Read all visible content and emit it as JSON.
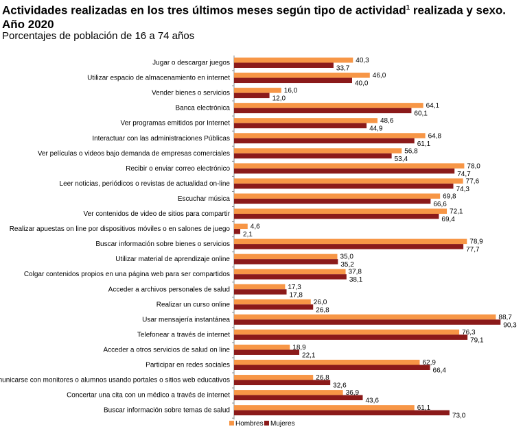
{
  "title": {
    "main": "Actividades realizadas en los tres últimos meses según tipo de actividad",
    "superscript": "1",
    "rest": " realizada y sexo. Año 2020"
  },
  "subtitle": "Porcentajes de población de 16 a 74 años",
  "colors": {
    "hombres": "#F79646",
    "mujeres": "#8B1A1A",
    "axis": "#888888"
  },
  "chart_data": {
    "type": "bar",
    "orientation": "horizontal",
    "title": "Actividades realizadas en los tres últimos meses según tipo de actividad realizada y sexo. Año 2020",
    "subtitle": "Porcentajes de población de 16 a 74 años",
    "xlim": [
      0,
      100
    ],
    "grid": false,
    "legend": "bottom-left",
    "categories": [
      "Jugar o descargar juegos",
      "Utilizar espacio de almacenamiento en internet",
      "Vender bienes o servicios",
      "Banca electrónica",
      "Ver programas emitidos por Internet",
      "Interactuar con las administraciones Públicas",
      "Ver películas o videos bajo demanda de empresas comerciales",
      "Recibir o enviar correo electrónico",
      "Leer noticias, periódicos o revistas de actualidad on-line",
      "Escuchar música",
      "Ver contenidos de video de sitios para compartir",
      "Realizar apuestas on line por dispositivos móviles o en salones de juego",
      "Buscar información sobre bienes o servicios",
      "Utilizar material de aprendizaje online",
      "Colgar contenidos propios en una página web para ser compartidos",
      "Acceder a archivos personales de salud",
      "Realizar un curso online",
      "Usar mensajería instantánea",
      "Telefonear a través de internet",
      "Acceder a otros servicios de salud on line",
      "Participar en redes sociales",
      "Comunicarse con monitores o alumnos usando portales o sitios web educativos",
      "Concertar una cita con un médico a través de internet",
      "Buscar información sobre temas de salud"
    ],
    "series": [
      {
        "name": "Hombres",
        "values": [
          40.3,
          46.0,
          16.0,
          64.1,
          48.6,
          64.8,
          56.8,
          78.0,
          77.6,
          69.8,
          72.1,
          4.6,
          78.9,
          35.0,
          37.8,
          17.3,
          26.0,
          88.7,
          76.3,
          18.9,
          62.9,
          26.8,
          36.9,
          61.1
        ],
        "labels": [
          "40,3",
          "46,0",
          "16,0",
          "64,1",
          "48,6",
          "64,8",
          "56,8",
          "78,0",
          "77,6",
          "69,8",
          "72,1",
          "4,6",
          "78,9",
          "35,0",
          "37,8",
          "17,3",
          "26,0",
          "88,7",
          "76,3",
          "18,9",
          "62,9",
          "26,8",
          "36,9",
          "61,1"
        ]
      },
      {
        "name": "Mujeres",
        "values": [
          33.7,
          40.0,
          12.0,
          60.1,
          44.9,
          61.1,
          53.4,
          74.7,
          74.3,
          66.6,
          69.4,
          2.1,
          77.7,
          35.2,
          38.1,
          17.8,
          26.8,
          90.3,
          79.1,
          22.1,
          66.4,
          32.6,
          43.6,
          73.0
        ],
        "labels": [
          "33,7",
          "40,0",
          "12,0",
          "60,1",
          "44,9",
          "61,1",
          "53,4",
          "74,7",
          "74,3",
          "66,6",
          "69,4",
          "2,1",
          "77,7",
          "35,2",
          "38,1",
          "17,8",
          "26,8",
          "90,3",
          "79,1",
          "22,1",
          "66,4",
          "32,6",
          "43,6",
          "73,0"
        ]
      }
    ]
  }
}
